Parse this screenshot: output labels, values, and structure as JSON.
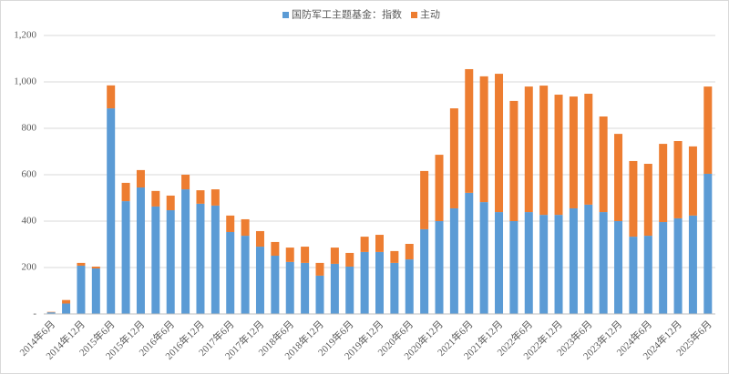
{
  "chart_data": {
    "type": "stacked_bar",
    "categories": [
      "2014年6月",
      null,
      "2014年12月",
      null,
      "2015年6月",
      null,
      "2015年12月",
      null,
      "2016年6月",
      null,
      "2016年12月",
      null,
      "2017年6月",
      null,
      "2017年12月",
      null,
      "2018年6月",
      null,
      "2018年12月",
      null,
      "2019年6月",
      null,
      "2019年12月",
      null,
      "2020年6月",
      null,
      "2020年12月",
      null,
      "2021年6月",
      null,
      "2021年12月",
      null,
      "2022年6月",
      null,
      "2022年12月",
      null,
      "2023年6月",
      null,
      "2023年12月",
      null,
      "2024年6月",
      null,
      "2024年12月",
      null,
      "2025年6月"
    ],
    "series": [
      {
        "name": "国防军工主题基金：指数",
        "color": "#5b9bd5",
        "values": [
          7,
          45,
          208,
          196,
          886,
          486,
          545,
          463,
          447,
          537,
          475,
          467,
          353,
          337,
          290,
          251,
          224,
          220,
          165,
          216,
          204,
          267,
          267,
          220,
          235,
          365,
          400,
          455,
          522,
          482,
          439,
          400,
          439,
          427,
          427,
          455,
          471,
          439,
          400,
          333,
          337,
          396,
          412,
          424,
          604
        ]
      },
      {
        "name": "主动",
        "color": "#ed7d31",
        "values": [
          2,
          15,
          12,
          8,
          99,
          79,
          75,
          67,
          63,
          63,
          58,
          70,
          71,
          71,
          67,
          59,
          62,
          70,
          55,
          70,
          59,
          66,
          74,
          51,
          67,
          251,
          286,
          431,
          533,
          542,
          596,
          518,
          541,
          557,
          518,
          482,
          478,
          412,
          376,
          326,
          310,
          337,
          333,
          298,
          376
        ]
      }
    ],
    "ylim": [
      0,
      1200
    ],
    "yticks": [
      {
        "value": 0,
        "label": "-"
      },
      200,
      400,
      600,
      800,
      {
        "value": 1000,
        "label": "1,000"
      },
      {
        "value": 1200,
        "label": "1,200"
      }
    ],
    "grid": true,
    "legend": "top"
  }
}
